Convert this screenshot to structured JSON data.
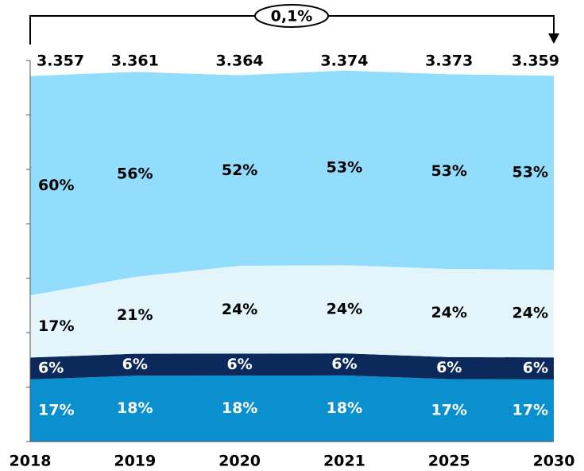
{
  "chart_data": {
    "type": "area",
    "categories": [
      "2018",
      "2019",
      "2020",
      "2021",
      "2025",
      "2030"
    ],
    "totals": [
      3.357,
      3.361,
      3.364,
      3.374,
      3.373,
      3.359
    ],
    "annotation": "0,1%",
    "ylim": [
      0,
      3.5
    ],
    "yticks": [
      0,
      0.5,
      1,
      1.5,
      2,
      2.5,
      3,
      3.5
    ],
    "series": [
      {
        "color": "#0a8fcf",
        "label_color": "#ffffff",
        "values": [
          17,
          18,
          18,
          18,
          17,
          17
        ],
        "value_labels": [
          "17%",
          "18%",
          "18%",
          "18%",
          "17%",
          "17%"
        ]
      },
      {
        "color": "#0b2a5b",
        "label_color": "#ffffff",
        "values": [
          6,
          6,
          6,
          6,
          6,
          6
        ],
        "value_labels": [
          "6%",
          "6%",
          "6%",
          "6%",
          "6%",
          "6%"
        ]
      },
      {
        "color": "#e4f4fb",
        "label_color": "#000000",
        "values": [
          17,
          21,
          24,
          24,
          24,
          24
        ],
        "value_labels": [
          "17%",
          "21%",
          "24%",
          "24%",
          "24%",
          "24%"
        ]
      },
      {
        "color": "#92dcfc",
        "label_color": "#000000",
        "values": [
          60,
          56,
          52,
          53,
          53,
          53
        ],
        "value_labels": [
          "60%",
          "56%",
          "52%",
          "53%",
          "53%",
          "53%"
        ]
      }
    ]
  }
}
